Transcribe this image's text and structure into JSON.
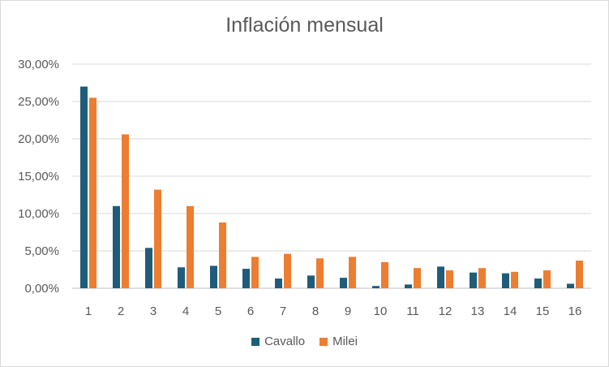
{
  "chart_data": {
    "type": "bar",
    "title": "Inflación mensual",
    "categories": [
      "1",
      "2",
      "3",
      "4",
      "5",
      "6",
      "7",
      "8",
      "9",
      "10",
      "11",
      "12",
      "13",
      "14",
      "15",
      "16"
    ],
    "series": [
      {
        "name": "Cavallo",
        "color": "#1f5c7a",
        "values": [
          27.0,
          11.0,
          5.4,
          2.8,
          3.0,
          2.6,
          1.3,
          1.7,
          1.4,
          0.3,
          0.5,
          2.9,
          2.1,
          2.0,
          1.3,
          0.6
        ]
      },
      {
        "name": "Milei",
        "color": "#ed7d31",
        "values": [
          25.5,
          20.6,
          13.2,
          11.0,
          8.8,
          4.2,
          4.6,
          4.0,
          4.2,
          3.5,
          2.7,
          2.4,
          2.7,
          2.2,
          2.4,
          3.7
        ]
      }
    ],
    "y_ticks": [
      "0,00%",
      "5,00%",
      "10,00%",
      "15,00%",
      "20,00%",
      "25,00%",
      "30,00%"
    ],
    "ylim": [
      0,
      30
    ],
    "grid": true,
    "legend": "bottom"
  }
}
